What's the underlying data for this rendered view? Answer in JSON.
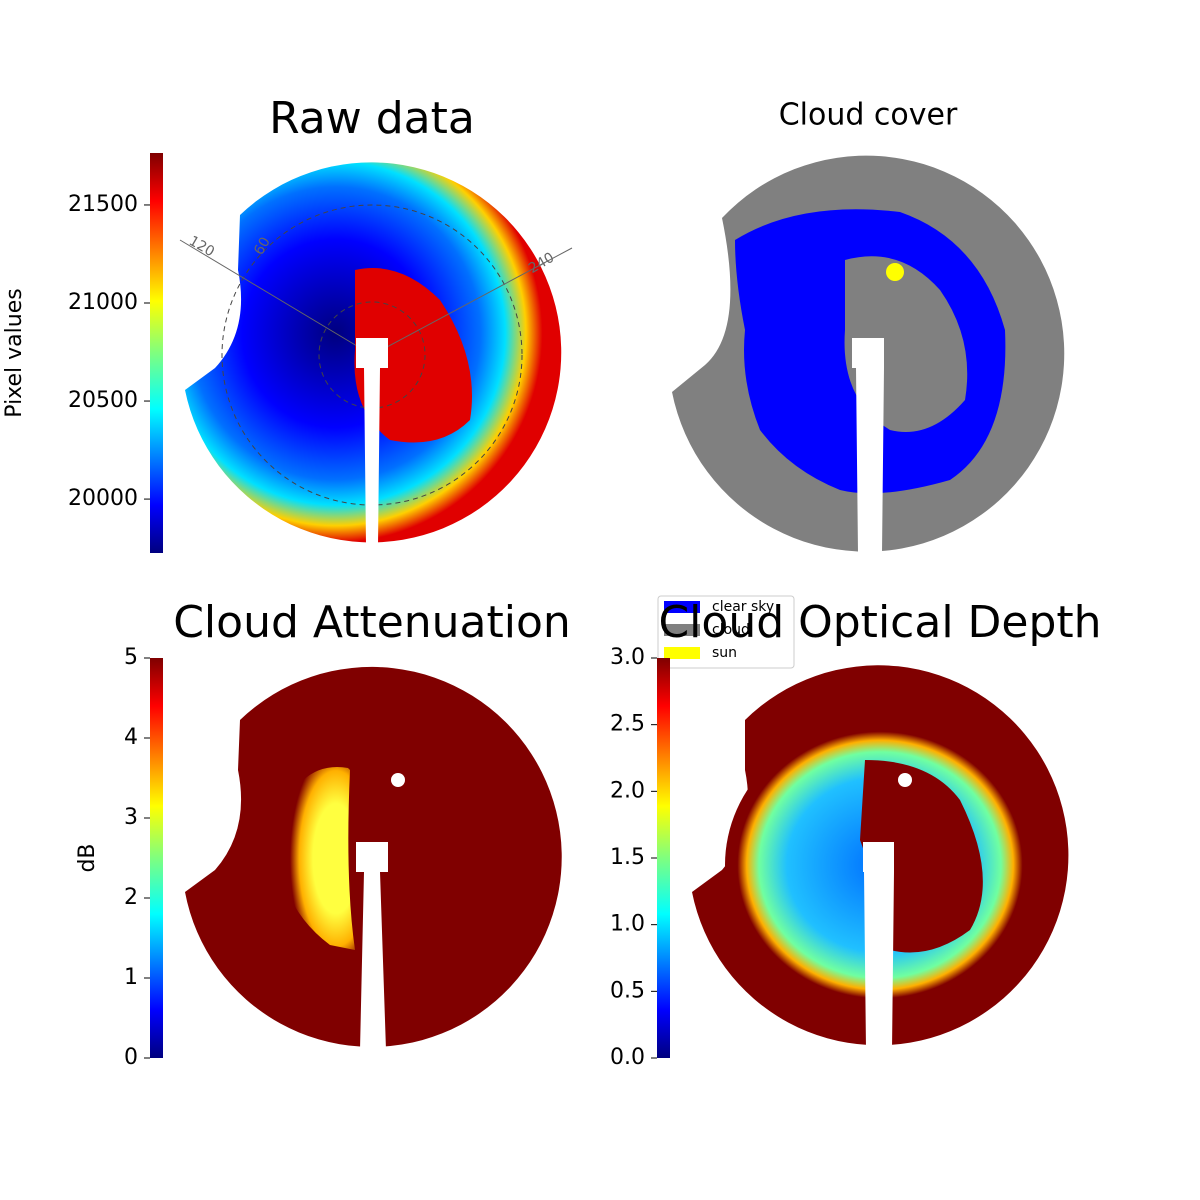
{
  "chart_data": [
    {
      "type": "image",
      "title": "Raw data",
      "colorbar_label": "Pixel values",
      "colormap": "jet",
      "ylim": [
        19725,
        21765
      ],
      "yticks": [
        20000,
        20500,
        21000,
        21500
      ],
      "annotations": [
        "120",
        "60",
        "240"
      ]
    },
    {
      "type": "image",
      "title": "Cloud cover",
      "legend": [
        {
          "name": "clear sky",
          "color": "#0000ff"
        },
        {
          "name": "cloud",
          "color": "#808080"
        },
        {
          "name": "sun",
          "color": "#ffff00"
        }
      ]
    },
    {
      "type": "image",
      "title": "Cloud Attenuation",
      "colorbar_label": "dB",
      "colormap": "jet",
      "ylim": [
        0,
        5
      ],
      "yticks": [
        0,
        1,
        2,
        3,
        4,
        5
      ]
    },
    {
      "type": "image",
      "title": "Cloud Optical Depth",
      "colormap": "jet",
      "ylim": [
        0,
        3
      ],
      "yticks": [
        {
          "value": 0,
          "label": "0.0"
        },
        0.5,
        {
          "value": 1,
          "label": "1.0"
        },
        1.5,
        {
          "value": 2,
          "label": "2.0"
        },
        2.5,
        {
          "value": 3,
          "label": "3.0"
        }
      ]
    }
  ]
}
